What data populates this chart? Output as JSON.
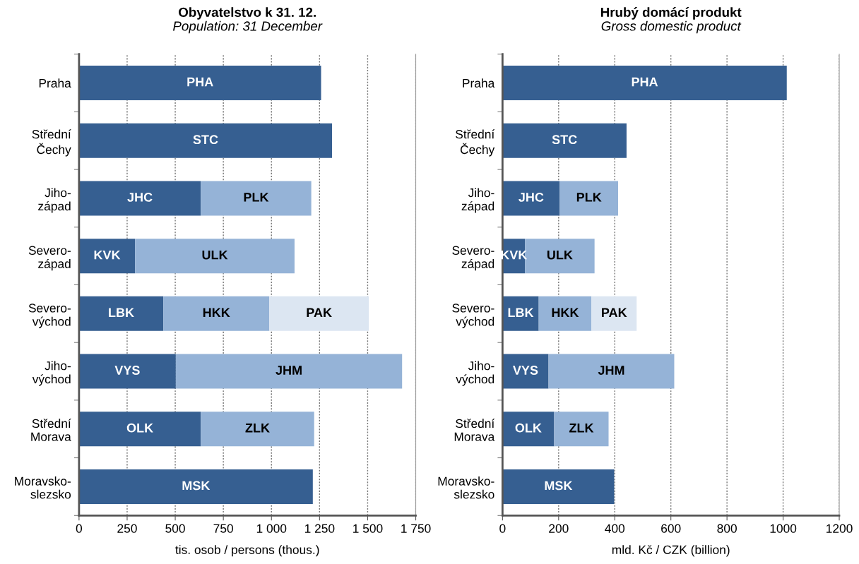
{
  "chart_data": [
    {
      "type": "bar",
      "orientation": "horizontal",
      "stacked": true,
      "title": "Obyvatelstvo k 31. 12.",
      "subtitle": "Population: 31 December",
      "xlabel": "tis. osob / persons (thous.)",
      "categories": [
        "Praha",
        "Střední\nČechy",
        "Jiho-\nzápad",
        "Severo-\nzápad",
        "Severo-\nvýchod",
        "Jiho-\nvýchod",
        "Střední\nMorava",
        "Moravsko-\nslezsko"
      ],
      "series": [
        {
          "color": "#365f91",
          "values": [
            1258,
            1315,
            633,
            291,
            438,
            503,
            633,
            1215
          ],
          "value_labels": [
            "PHA",
            "STC",
            "JHC",
            "KVK",
            "LBK",
            "VYS",
            "OLK",
            "MSK"
          ]
        },
        {
          "color": "#95b3d7",
          "values": [
            null,
            null,
            574,
            829,
            551,
            1176,
            589,
            null
          ],
          "value_labels": [
            null,
            null,
            "PLK",
            "ULK",
            "HKK",
            "JHM",
            "ZLK",
            null
          ]
        },
        {
          "color": "#dce6f2",
          "values": [
            null,
            null,
            null,
            null,
            517,
            null,
            null,
            null
          ],
          "value_labels": [
            null,
            null,
            null,
            null,
            "PAK",
            null,
            null,
            null
          ]
        }
      ],
      "xlim": [
        0,
        1750
      ],
      "xticks": [
        0,
        250,
        500,
        750,
        {
          "value": 1000,
          "label": "1 000"
        },
        {
          "value": 1250,
          "label": "1 250"
        },
        {
          "value": 1500,
          "label": "1 500"
        },
        {
          "value": 1750,
          "label": "1 750"
        }
      ],
      "grid": "x"
    },
    {
      "type": "bar",
      "orientation": "horizontal",
      "stacked": true,
      "title": "Hrubý domácí produkt",
      "subtitle": "Gross domestic product",
      "xlabel": "mld. Kč / CZK (billion)",
      "categories": [
        "Praha",
        "Střední\nČechy",
        "Jiho-\nzápad",
        "Severo-\nzápad",
        "Severo-\nvýchod",
        "Jiho-\nvýchod",
        "Střední\nMorava",
        "Moravsko-\nslezsko"
      ],
      "series": [
        {
          "color": "#365f91",
          "values": [
            1013,
            442,
            204,
            80,
            129,
            164,
            184,
            398
          ],
          "value_labels": [
            "PHA",
            "STC",
            "JHC",
            "KVK",
            "LBK",
            "VYS",
            "OLK",
            "MSK"
          ]
        },
        {
          "color": "#95b3d7",
          "values": [
            null,
            null,
            208,
            248,
            188,
            448,
            194,
            null
          ],
          "value_labels": [
            null,
            null,
            "PLK",
            "ULK",
            "HKK",
            "JHM",
            "ZLK",
            null
          ]
        },
        {
          "color": "#dce6f2",
          "values": [
            null,
            null,
            null,
            null,
            161,
            null,
            null,
            null
          ],
          "value_labels": [
            null,
            null,
            null,
            null,
            "PAK",
            null,
            null,
            null
          ]
        }
      ],
      "xlim": [
        0,
        1200
      ],
      "xticks": [
        0,
        200,
        400,
        600,
        800,
        1000,
        1200
      ],
      "grid": "x"
    }
  ]
}
